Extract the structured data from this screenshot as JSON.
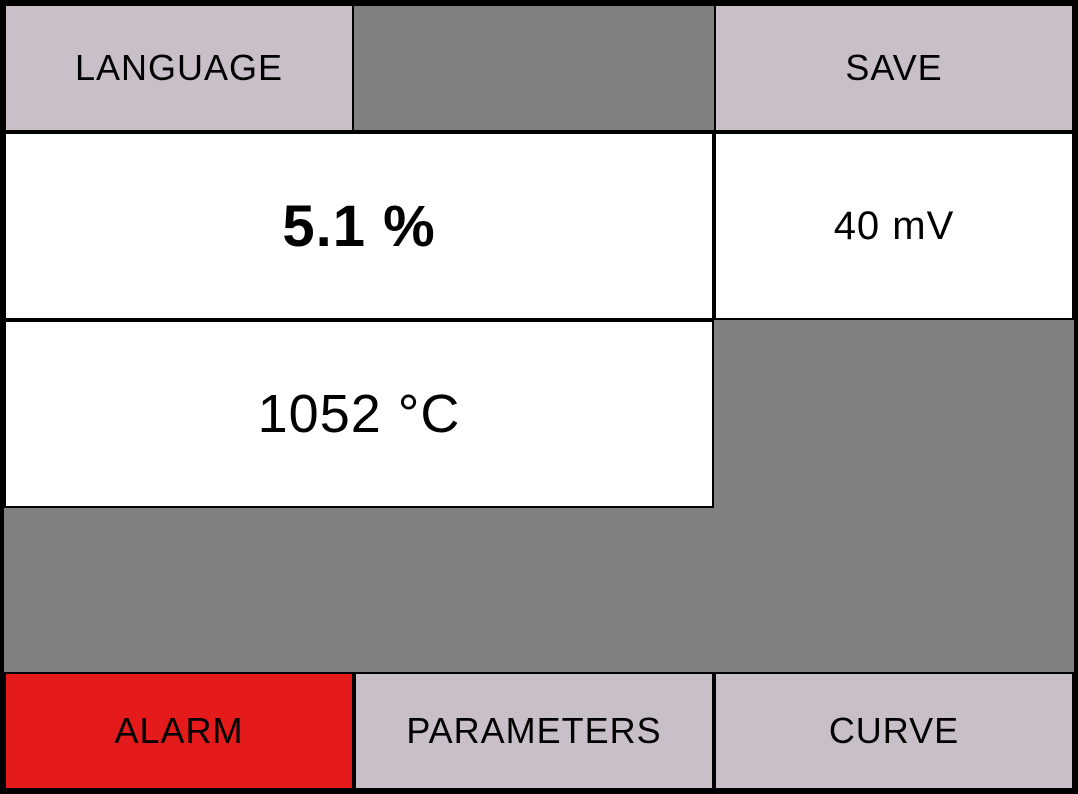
{
  "colors": {
    "light_gray": "#c9bfc9",
    "dark_gray": "#808080",
    "white": "#ffffff",
    "red": "#e51b1b",
    "border": "#000000"
  },
  "top_row": {
    "language_label": "LANGUAGE",
    "save_label": "SAVE"
  },
  "readings": {
    "percent_value": "5.1 %",
    "voltage_value": "40 mV",
    "temperature_value": "1052 °C"
  },
  "bottom_row": {
    "alarm_label": "ALARM",
    "parameters_label": "PARAMETERS",
    "curve_label": "CURVE"
  }
}
